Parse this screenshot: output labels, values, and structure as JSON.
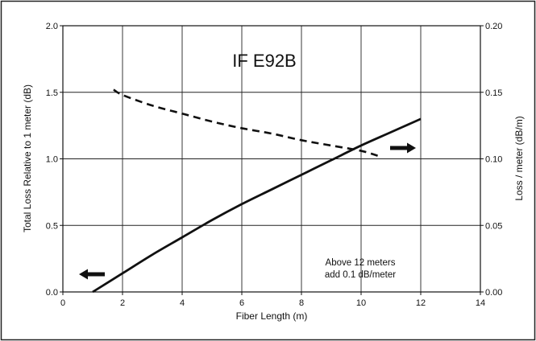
{
  "chart_data": {
    "type": "line",
    "title": "IF E92B",
    "xlabel": "Fiber Length (m)",
    "ylabel": "Total Loss Relative to 1 meter (dB)",
    "ylabel_right": "Loss / meter (dB/m)",
    "xlim": [
      0,
      14
    ],
    "ylim": [
      0,
      2.0
    ],
    "ylim_right": [
      0,
      0.2
    ],
    "grid": true,
    "x_ticks": [
      "0",
      "2",
      "4",
      "6",
      "8",
      "10",
      "12",
      "14"
    ],
    "y_ticks": [
      "0.0",
      "0.5",
      "1.0",
      "1.5",
      "2.0"
    ],
    "y_ticks_right": [
      "0.00",
      "0.05",
      "0.10",
      "0.15",
      "0.20"
    ],
    "series": [
      {
        "axis": "left",
        "style": "solid",
        "x": [
          1,
          2,
          3,
          4,
          5,
          6,
          7,
          8,
          9,
          10,
          11,
          12
        ],
        "y": [
          0.0,
          0.14,
          0.28,
          0.41,
          0.54,
          0.66,
          0.77,
          0.88,
          0.99,
          1.1,
          1.2,
          1.3
        ]
      },
      {
        "axis": "right",
        "style": "dashed",
        "x": [
          1.7,
          2,
          3,
          4,
          5,
          6,
          7,
          8,
          9,
          10,
          10.6
        ],
        "y": [
          0.152,
          0.148,
          0.14,
          0.134,
          0.128,
          0.123,
          0.119,
          0.114,
          0.11,
          0.106,
          0.102
        ]
      }
    ],
    "annotations": [
      "Above 12 meters",
      "add 0.1 dB/meter"
    ]
  }
}
